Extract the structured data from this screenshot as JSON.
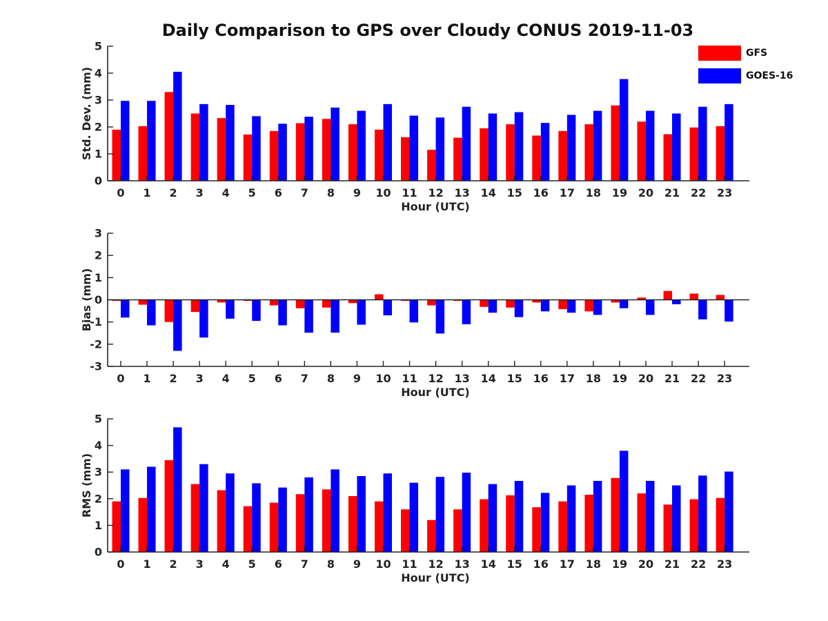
{
  "chart_data": {
    "title": "Daily Comparison to GPS over Cloudy CONUS 2019-11-03",
    "type": "bar",
    "series_names": [
      "GFS",
      "GOES-16"
    ],
    "colors": {
      "GFS": "#ff0000",
      "GOES-16": "#0000ff"
    },
    "categories": [
      "0",
      "1",
      "2",
      "3",
      "4",
      "5",
      "6",
      "7",
      "8",
      "9",
      "10",
      "11",
      "12",
      "13",
      "14",
      "15",
      "16",
      "17",
      "18",
      "19",
      "20",
      "21",
      "22",
      "23"
    ],
    "panels": [
      {
        "id": "std",
        "ylabel": "Std. Dev. (mm)",
        "xlabel": "Hour (UTC)",
        "ylim": [
          0,
          5
        ],
        "yticks": [
          0,
          1,
          2,
          3,
          4,
          5
        ],
        "series": [
          {
            "name": "GFS",
            "values": [
              1.9,
              2.03,
              3.3,
              2.5,
              2.33,
              1.72,
              1.85,
              2.14,
              2.3,
              2.1,
              1.9,
              1.62,
              1.15,
              1.6,
              1.95,
              2.1,
              1.68,
              1.85,
              2.1,
              2.8,
              2.2,
              1.73,
              1.98,
              2.03
            ]
          },
          {
            "name": "GOES-16",
            "values": [
              2.97,
              2.97,
              4.05,
              2.85,
              2.82,
              2.4,
              2.12,
              2.38,
              2.72,
              2.6,
              2.85,
              2.42,
              2.35,
              2.75,
              2.5,
              2.55,
              2.15,
              2.45,
              2.6,
              3.78,
              2.6,
              2.5,
              2.75,
              2.85
            ]
          }
        ]
      },
      {
        "id": "bias",
        "ylabel": "Bias (mm)",
        "xlabel": "Hour (UTC)",
        "ylim": [
          -3,
          3
        ],
        "yticks": [
          -3,
          -2,
          -1,
          0,
          1,
          2,
          3
        ],
        "series": [
          {
            "name": "GFS",
            "values": [
              -0.05,
              -0.22,
              -1.0,
              -0.55,
              -0.12,
              -0.05,
              -0.25,
              -0.38,
              -0.35,
              -0.15,
              0.25,
              -0.05,
              -0.25,
              -0.05,
              -0.32,
              -0.35,
              -0.12,
              -0.42,
              -0.52,
              -0.12,
              0.1,
              0.4,
              0.28,
              0.22
            ]
          },
          {
            "name": "GOES-16",
            "values": [
              -0.8,
              -1.15,
              -2.3,
              -1.7,
              -0.85,
              -0.95,
              -1.15,
              -1.48,
              -1.48,
              -1.12,
              -0.7,
              -1.02,
              -1.52,
              -1.1,
              -0.58,
              -0.78,
              -0.52,
              -0.58,
              -0.68,
              -0.38,
              -0.68,
              -0.2,
              -0.88,
              -0.98
            ]
          }
        ]
      },
      {
        "id": "rms",
        "ylabel": "RMS (mm)",
        "xlabel": "Hour (UTC)",
        "ylim": [
          0,
          5
        ],
        "yticks": [
          0,
          1,
          2,
          3,
          4,
          5
        ],
        "series": [
          {
            "name": "GFS",
            "values": [
              1.9,
              2.03,
              3.45,
              2.55,
              2.32,
              1.72,
              1.85,
              2.17,
              2.35,
              2.1,
              1.9,
              1.6,
              1.2,
              1.6,
              1.98,
              2.13,
              1.68,
              1.9,
              2.15,
              2.78,
              2.2,
              1.78,
              1.98,
              2.03
            ]
          },
          {
            "name": "GOES-16",
            "values": [
              3.1,
              3.2,
              4.68,
              3.3,
              2.95,
              2.58,
              2.42,
              2.8,
              3.1,
              2.85,
              2.95,
              2.6,
              2.82,
              2.98,
              2.55,
              2.67,
              2.22,
              2.5,
              2.67,
              3.8,
              2.67,
              2.5,
              2.87,
              3.02
            ]
          }
        ]
      }
    ]
  }
}
